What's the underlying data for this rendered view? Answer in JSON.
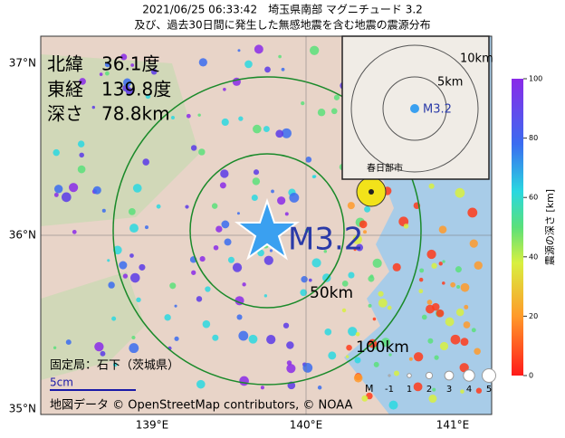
{
  "title": [
    "2021/06/25 06:33:42　埼玉県南部 マグニチュード 3.2",
    "及び、過去30日間に発生した無感地震を含む地震の震源分布"
  ],
  "info": {
    "latitude": "北緯　36.1度",
    "longitude": "東経　139.8度",
    "depth": "深さ　78.8km"
  },
  "epicenter_label": "M3.2",
  "rings": [
    "50km",
    "100km"
  ],
  "station": "固定局：石下（茨城県）",
  "scale": "5cm",
  "attribution": "地図データ © OpenStreetMap contributors, © NOAA",
  "axis": {
    "lat": [
      "37°N",
      "36°N",
      "35°N"
    ],
    "lon": [
      "139°E",
      "140°E",
      "141°E"
    ]
  },
  "colorbar": {
    "label": "震源の深さ [km]",
    "ticks": [
      0,
      20,
      40,
      60,
      80,
      100
    ]
  },
  "inset": {
    "rings": [
      "10km",
      "5km"
    ],
    "label": "M3.2",
    "place": "春日部市"
  },
  "magnitude_legend": {
    "title": "M",
    "levels": [
      "-1",
      "1",
      "2",
      "3",
      "4",
      "5"
    ]
  }
}
